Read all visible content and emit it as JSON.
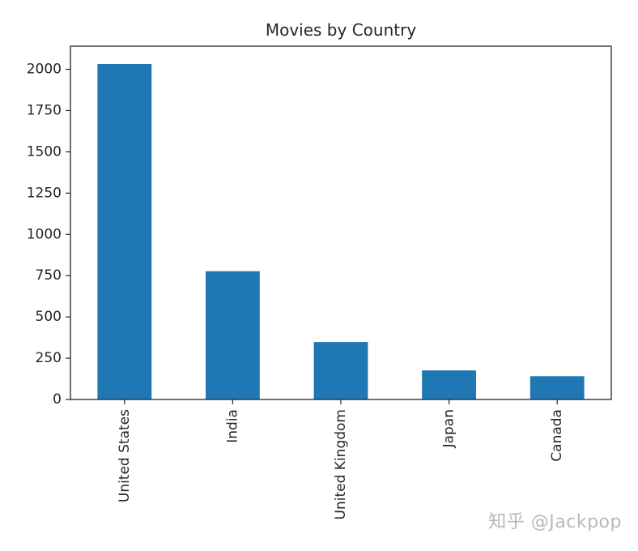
{
  "chart_data": {
    "type": "bar",
    "title": "Movies by Country",
    "xlabel": "",
    "ylabel": "",
    "categories": [
      "United States",
      "India",
      "United Kingdom",
      "Japan",
      "Canada"
    ],
    "values": [
      2032,
      777,
      348,
      176,
      141
    ],
    "ylim": [
      0,
      2140
    ],
    "yticks": [
      "0",
      "250",
      "500",
      "750",
      "1000",
      "1250",
      "1500",
      "1750",
      "2000"
    ],
    "grid": false,
    "legend": "none",
    "bar_color": "#1f77b4"
  },
  "watermark": "知乎 @Jackpop"
}
